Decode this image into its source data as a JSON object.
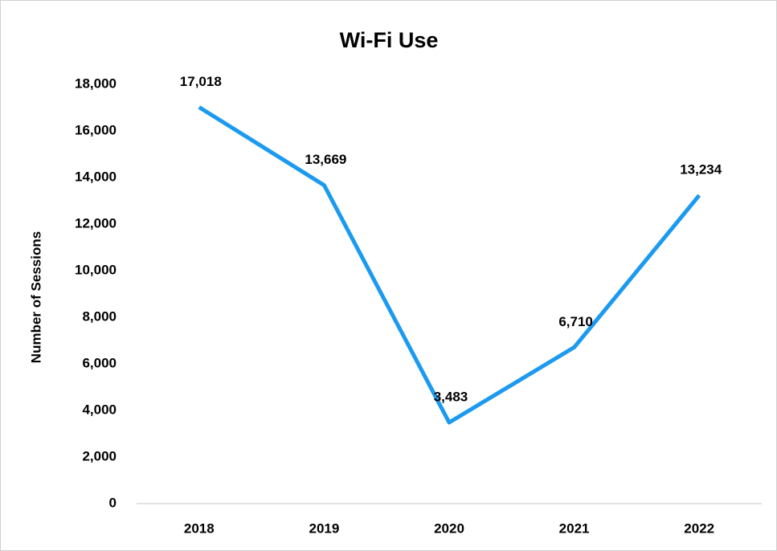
{
  "chart_data": {
    "type": "line",
    "title": "Wi-Fi Use",
    "y_label": "Number of Sessions",
    "categories": [
      "2018",
      "2019",
      "2020",
      "2021",
      "2022"
    ],
    "values": [
      17018,
      13669,
      3483,
      6710,
      13234
    ],
    "value_labels": [
      "17,018",
      "13,669",
      "3,483",
      "6,710",
      "13,234"
    ],
    "color": "#1b9af0",
    "ylim": [
      0,
      18000
    ],
    "yticks": [
      0,
      {
        "value": 2000,
        "label": "2,000"
      },
      {
        "value": 4000,
        "label": "4,000"
      },
      {
        "value": 6000,
        "label": "6,000"
      },
      {
        "value": 8000,
        "label": "8,000"
      },
      {
        "value": 10000,
        "label": "10,000"
      },
      {
        "value": 12000,
        "label": "12,000"
      },
      {
        "value": 14000,
        "label": "14,000"
      },
      {
        "value": 16000,
        "label": "16,000"
      },
      {
        "value": 18000,
        "label": "18,000"
      }
    ],
    "grid": false
  }
}
